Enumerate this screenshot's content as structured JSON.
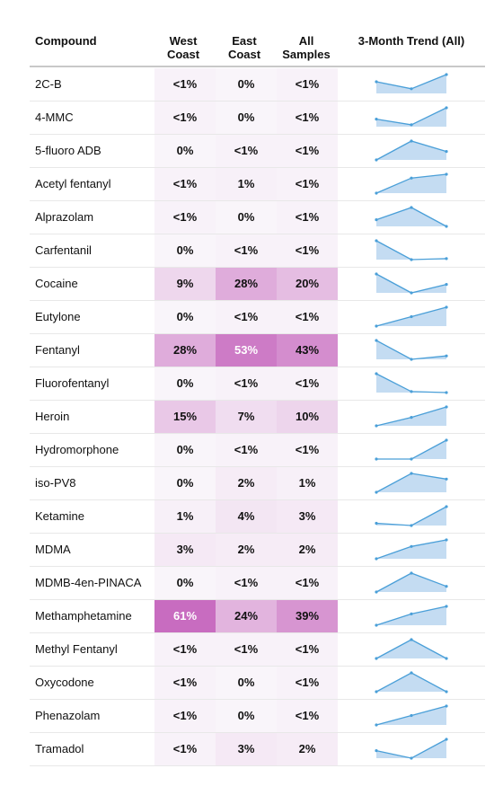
{
  "headers": {
    "compound": "Compound",
    "west": [
      "West",
      "Coast"
    ],
    "east": [
      "East",
      "Coast"
    ],
    "all": [
      "All",
      "Samples"
    ],
    "trend": "3-Month Trend (All)"
  },
  "colors": {
    "cell_scale_low": "#f9f5fa",
    "cell_scale_high": "#c86cc0",
    "spark_line": "#4a9fd8",
    "spark_fill": "#c4dcf2"
  },
  "chart_data": {
    "type": "table",
    "columns": [
      "Compound",
      "West Coast",
      "East Coast",
      "All Samples",
      "3-Month Trend (All)"
    ],
    "rows": [
      {
        "compound": "2C-B",
        "west": "<1%",
        "east": "0%",
        "all": "<1%",
        "trend": [
          0.62,
          0.25,
          1.0
        ]
      },
      {
        "compound": "4-MMC",
        "west": "<1%",
        "east": "0%",
        "all": "<1%",
        "trend": [
          0.4,
          0.1,
          1.0
        ]
      },
      {
        "compound": "5-fluoro ADB",
        "west": "0%",
        "east": "<1%",
        "all": "<1%",
        "trend": [
          0.0,
          1.0,
          0.45
        ]
      },
      {
        "compound": "Acetyl fentanyl",
        "west": "<1%",
        "east": "1%",
        "all": "<1%",
        "trend": [
          0.0,
          0.8,
          1.0
        ]
      },
      {
        "compound": "Alprazolam",
        "west": "<1%",
        "east": "0%",
        "all": "<1%",
        "trend": [
          0.35,
          1.0,
          0.0
        ]
      },
      {
        "compound": "Carfentanil",
        "west": "0%",
        "east": "<1%",
        "all": "<1%",
        "trend": [
          1.0,
          0.0,
          0.05
        ]
      },
      {
        "compound": "Cocaine",
        "west": "9%",
        "east": "28%",
        "all": "20%",
        "trend": [
          1.0,
          0.0,
          0.45
        ]
      },
      {
        "compound": "Eutylone",
        "west": "0%",
        "east": "<1%",
        "all": "<1%",
        "trend": [
          0.0,
          0.5,
          1.0
        ]
      },
      {
        "compound": "Fentanyl",
        "west": "28%",
        "east": "53%",
        "all": "43%",
        "trend": [
          1.0,
          0.0,
          0.18
        ]
      },
      {
        "compound": "Fluorofentanyl",
        "west": "0%",
        "east": "<1%",
        "all": "<1%",
        "trend": [
          1.0,
          0.05,
          0.0
        ]
      },
      {
        "compound": "Heroin",
        "west": "15%",
        "east": "7%",
        "all": "10%",
        "trend": [
          0.0,
          0.45,
          1.0
        ]
      },
      {
        "compound": "Hydromorphone",
        "west": "0%",
        "east": "<1%",
        "all": "<1%",
        "trend": [
          0.0,
          0.0,
          1.0
        ]
      },
      {
        "compound": "iso-PV8",
        "west": "0%",
        "east": "2%",
        "all": "1%",
        "trend": [
          0.0,
          1.0,
          0.7
        ]
      },
      {
        "compound": "Ketamine",
        "west": "1%",
        "east": "4%",
        "all": "3%",
        "trend": [
          0.12,
          0.0,
          1.0
        ]
      },
      {
        "compound": "MDMA",
        "west": "3%",
        "east": "2%",
        "all": "2%",
        "trend": [
          0.0,
          0.65,
          1.0
        ]
      },
      {
        "compound": "MDMB-4en-PINACA",
        "west": "0%",
        "east": "<1%",
        "all": "<1%",
        "trend": [
          0.0,
          1.0,
          0.3
        ]
      },
      {
        "compound": "Methamphetamine",
        "west": "61%",
        "east": "24%",
        "all": "39%",
        "trend": [
          0.0,
          0.6,
          1.0
        ]
      },
      {
        "compound": "Methyl Fentanyl",
        "west": "<1%",
        "east": "<1%",
        "all": "<1%",
        "trend": [
          0.0,
          1.0,
          0.0
        ]
      },
      {
        "compound": "Oxycodone",
        "west": "<1%",
        "east": "0%",
        "all": "<1%",
        "trend": [
          0.0,
          1.0,
          0.0
        ]
      },
      {
        "compound": "Phenazolam",
        "west": "<1%",
        "east": "0%",
        "all": "<1%",
        "trend": [
          0.0,
          0.5,
          1.0
        ]
      },
      {
        "compound": "Tramadol",
        "west": "<1%",
        "east": "3%",
        "all": "2%",
        "trend": [
          0.4,
          0.0,
          1.0
        ]
      }
    ]
  }
}
